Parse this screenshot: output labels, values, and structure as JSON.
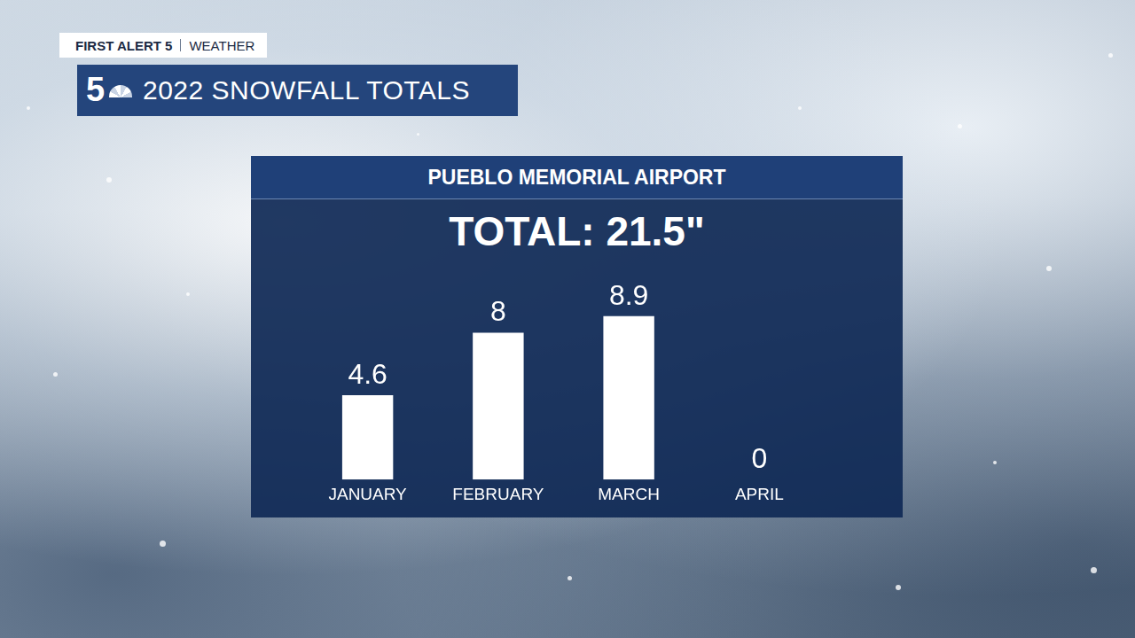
{
  "header": {
    "brand": "FIRST ALERT 5",
    "section": "WEATHER",
    "logo": "5",
    "headline": "2022 SNOWFALL TOTALS"
  },
  "chart_data": {
    "type": "bar",
    "title": "PUEBLO MEMORIAL AIRPORT",
    "subtitle": "TOTAL: 21.5\"",
    "categories": [
      "JANUARY",
      "FEBRUARY",
      "MARCH",
      "APRIL"
    ],
    "values": [
      4.6,
      8,
      8.9,
      0
    ],
    "color": "#ffffff",
    "data_labels": true,
    "grid": false,
    "tick_labels": "x"
  }
}
